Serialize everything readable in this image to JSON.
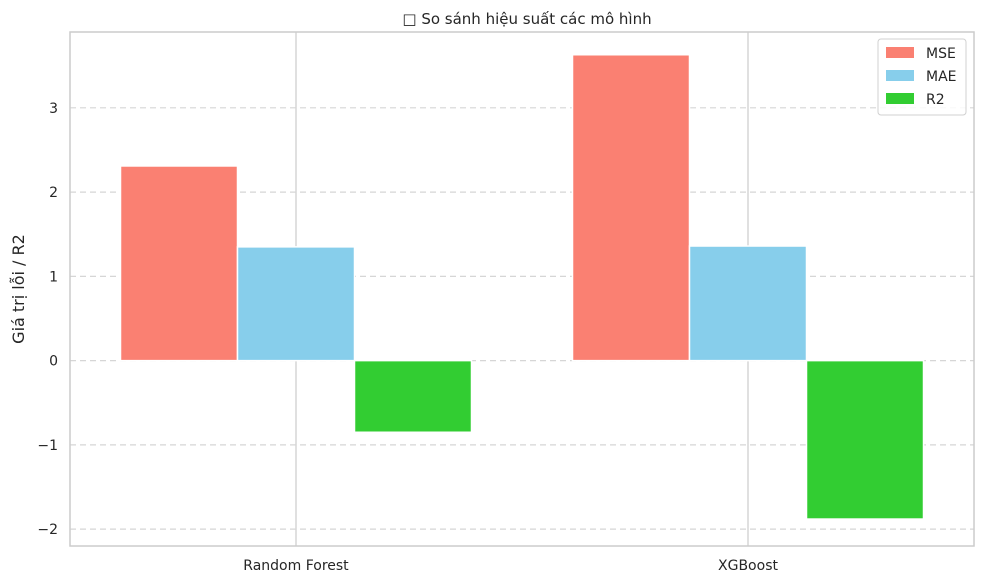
{
  "chart_data": {
    "type": "bar",
    "title": "□ So sánh hiệu suất các mô hình",
    "xlabel": "",
    "ylabel": "Giá trị lỗi / R2",
    "categories": [
      "Random Forest",
      "XGBoost"
    ],
    "series": [
      {
        "name": "MSE",
        "values": [
          2.31,
          3.63
        ],
        "color": "#fa8072"
      },
      {
        "name": "MAE",
        "values": [
          1.35,
          1.36
        ],
        "color": "#87ceeb"
      },
      {
        "name": "R2",
        "values": [
          -0.85,
          -1.88
        ],
        "color": "#32cd32"
      }
    ],
    "ylim": [
      -2.2,
      3.9
    ],
    "yticks": [
      -2,
      -1,
      0,
      1,
      2,
      3
    ],
    "ytick_labels": [
      "−2",
      "−1",
      "0",
      "1",
      "2",
      "3"
    ],
    "grid": {
      "y": true,
      "y_style": "dashed",
      "x": true
    },
    "legend_position": "top-right"
  }
}
